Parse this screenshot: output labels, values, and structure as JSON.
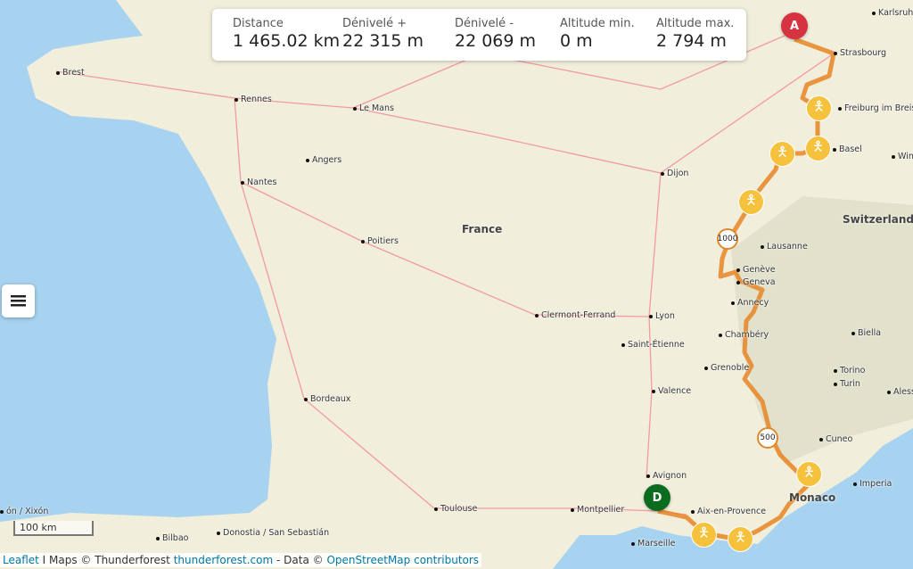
{
  "stats": [
    {
      "label": "Distance",
      "value": "1 465.02 km"
    },
    {
      "label": "Dénivelé +",
      "value": "22 315 m"
    },
    {
      "label": "Dénivelé -",
      "value": "22 069 m"
    },
    {
      "label": "Altitude min.",
      "value": "0 m"
    },
    {
      "label": "Altitude max.",
      "value": "2 794 m"
    }
  ],
  "markers": {
    "start": "A",
    "end": "D",
    "start_color": "#d63340",
    "end_color": "#0b6b1e",
    "km_1000": "1000",
    "km_500": "500",
    "route_color": "#e8892c",
    "poi_color": "#f6c23e",
    "poi_icon": "person-with-sign-icon"
  },
  "scale": "100 km",
  "attribution": {
    "leaflet": "Leaflet",
    "sep": " I Maps © Thunderforest ",
    "tf": "thunderforest.com",
    "data": " - Data © ",
    "osm": "OpenStreetMap contributors"
  },
  "labels": {
    "country_france": "France",
    "country_switzerland": "Switzerland",
    "monaco": "Monaco"
  },
  "cities": [
    "Brest",
    "Rennes",
    "Le Mans",
    "Angers",
    "Nantes",
    "Poitiers",
    "Dijon",
    "Strasbourg",
    "Karlsruhe",
    "Freiburg im Breisg",
    "Basel",
    "Winterthur",
    "Lausanne",
    "Genève",
    "Geneva",
    "Annecy",
    "Chambéry",
    "Lyon",
    "Clermont-Ferrand",
    "Saint-Étienne",
    "Grenoble",
    "Valence",
    "Biella",
    "Torino",
    "Turin",
    "Alessa",
    "Cuneo",
    "Imperia",
    "Avignon",
    "Aix-en-Provence",
    "Marseille",
    "Montpellier",
    "Toulouse",
    "Bordeaux",
    "Bilbao",
    "Donostia / San Sebastián",
    "ón / Xixón"
  ]
}
